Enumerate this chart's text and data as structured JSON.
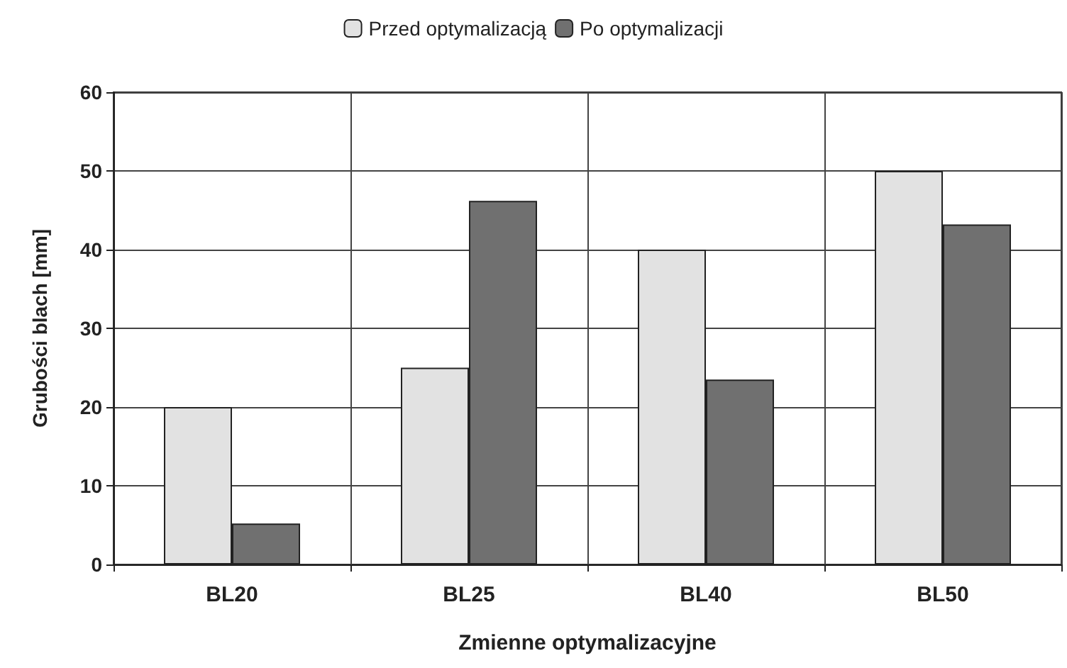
{
  "chart_data": {
    "type": "bar",
    "xlabel": "Zmienne optymalizacyjne",
    "ylabel": "Grubości blach [mm]",
    "categories": [
      "BL20",
      "BL25",
      "BL40",
      "BL50"
    ],
    "series": [
      {
        "name": "Przed optymalizacją",
        "color": "#e2e2e2",
        "values": [
          20,
          25,
          40,
          50
        ]
      },
      {
        "name": "Po optymalizacji",
        "color": "#707070",
        "values": [
          5.2,
          46.2,
          23.5,
          43.2
        ]
      }
    ],
    "ylim": [
      0,
      60
    ],
    "yticks": [
      0,
      10,
      20,
      30,
      40,
      50,
      60
    ],
    "grid": true,
    "legend": "top"
  }
}
